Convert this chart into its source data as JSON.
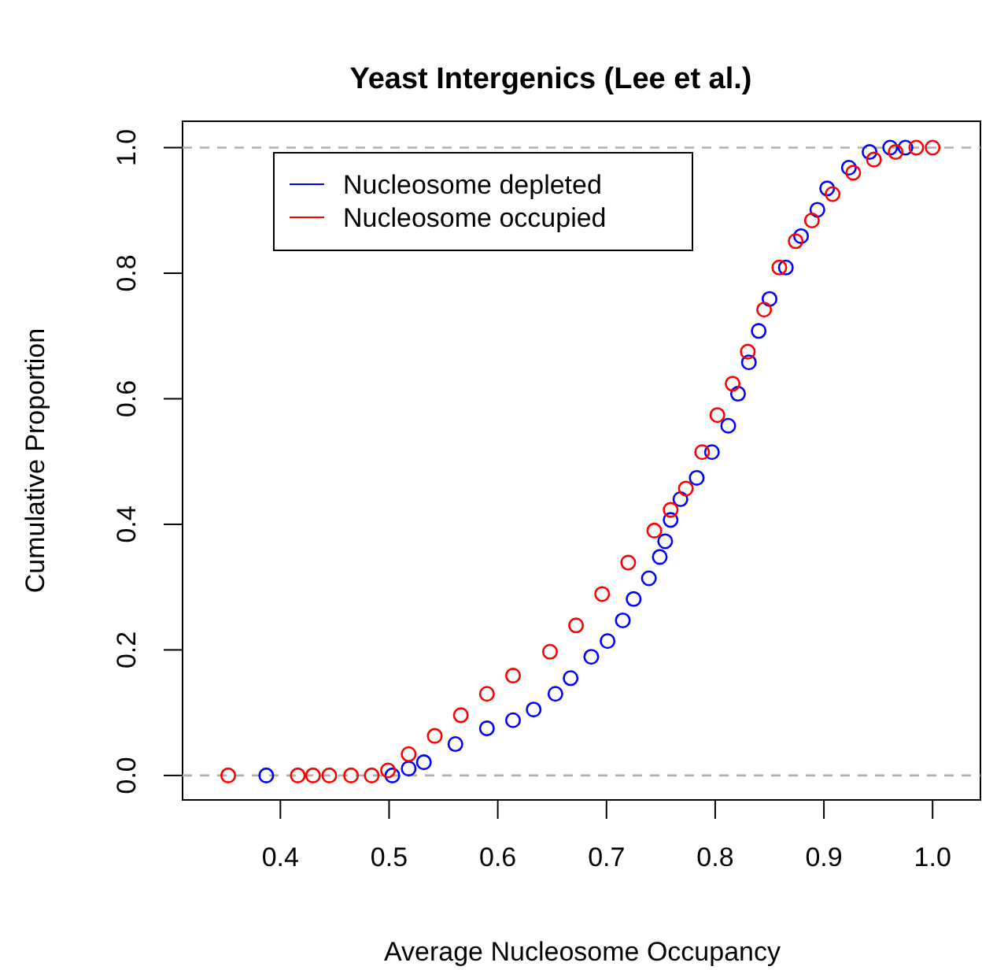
{
  "chart_data": {
    "type": "scatter",
    "title": "Yeast Intergenics (Lee et al.)",
    "xlabel": "Average Nucleosome Occupancy",
    "ylabel": "Cumulative Proportion",
    "xlim": [
      0.31,
      1.044
    ],
    "ylim": [
      -0.039,
      1.042
    ],
    "xticks": [
      0.4,
      0.5,
      0.6,
      0.7,
      0.8,
      0.9,
      {
        "value": 1,
        "label": "1.0"
      }
    ],
    "yticks": [
      {
        "value": 0,
        "label": "0.0"
      },
      0.2,
      0.4,
      0.6,
      0.8,
      {
        "value": 1,
        "label": "1.0"
      }
    ],
    "marker": "circle",
    "legend": "top left",
    "grid": false,
    "ref_lines": [
      {
        "axis": "y",
        "value": 0,
        "color": "#b0b0b0",
        "line_style": "dashed"
      },
      {
        "axis": "y",
        "value": 1,
        "color": "#b0b0b0",
        "line_style": "dashed"
      }
    ],
    "series": [
      {
        "name": "Nucleosome depleted",
        "color": "#0000ff",
        "x": [
          0.387,
          0.503,
          0.518,
          0.532,
          0.561,
          0.59,
          0.614,
          0.633,
          0.653,
          0.667,
          0.686,
          0.701,
          0.715,
          0.725,
          0.739,
          0.749,
          0.754,
          0.759,
          0.768,
          0.783,
          0.797,
          0.812,
          0.821,
          0.831,
          0.84,
          0.85,
          0.865,
          0.879,
          0.894,
          0.903,
          0.923,
          0.942,
          0.961,
          0.975
        ],
        "values": [
          0,
          0,
          0.011,
          0.021,
          0.05,
          0.075,
          0.088,
          0.105,
          0.13,
          0.155,
          0.189,
          0.214,
          0.247,
          0.281,
          0.314,
          0.348,
          0.373,
          0.407,
          0.44,
          0.474,
          0.515,
          0.557,
          0.608,
          0.658,
          0.708,
          0.759,
          0.809,
          0.859,
          0.901,
          0.935,
          0.968,
          0.993,
          1,
          1
        ]
      },
      {
        "name": "Nucleosome occupied",
        "color": "#ff0000",
        "x": [
          0.352,
          0.416,
          0.43,
          0.445,
          0.465,
          0.484,
          0.499,
          0.518,
          0.542,
          0.566,
          0.59,
          0.614,
          0.648,
          0.672,
          0.696,
          0.72,
          0.744,
          0.759,
          0.773,
          0.788,
          0.802,
          0.816,
          0.83,
          0.845,
          0.859,
          0.874,
          0.889,
          0.908,
          0.927,
          0.946,
          0.966,
          0.985,
          1.0
        ],
        "values": [
          0,
          0,
          0,
          0,
          0,
          0,
          0.008,
          0.034,
          0.063,
          0.096,
          0.13,
          0.159,
          0.197,
          0.239,
          0.289,
          0.339,
          0.39,
          0.423,
          0.457,
          0.515,
          0.574,
          0.624,
          0.675,
          0.742,
          0.809,
          0.851,
          0.884,
          0.926,
          0.96,
          0.981,
          0.993,
          1,
          1
        ]
      }
    ]
  }
}
